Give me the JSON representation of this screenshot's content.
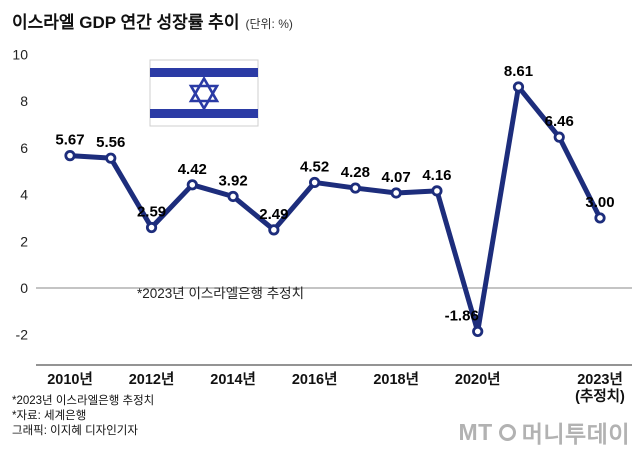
{
  "header": {
    "title": "이스라엘 GDP 연간 성장률 추이",
    "unit": "(단위: %)"
  },
  "chart_data": {
    "type": "line",
    "title": "이스라엘 GDP 연간 성장률 추이",
    "unit": "%",
    "years": [
      2010,
      2011,
      2012,
      2013,
      2014,
      2015,
      2016,
      2017,
      2018,
      2019,
      2020,
      2021,
      2022,
      2023
    ],
    "values": [
      5.67,
      5.56,
      2.59,
      4.42,
      3.92,
      2.49,
      4.52,
      4.28,
      4.07,
      4.16,
      -1.86,
      8.61,
      6.46,
      3.0
    ],
    "point_labels": [
      "5.67",
      "5.56",
      "2.59",
      "4.42",
      "3.92",
      "2.49",
      "4.52",
      "4.28",
      "4.07",
      "4.16",
      "-1.86",
      "8.61",
      "6.46",
      "3.00"
    ],
    "label_position": [
      "above",
      "above",
      "above",
      "above",
      "above",
      "above",
      "above",
      "above",
      "above",
      "above",
      "above-left",
      "above",
      "above",
      "above"
    ],
    "yticks": [
      -2,
      0,
      2,
      4,
      6,
      8,
      10
    ],
    "ylim": [
      -2,
      10
    ],
    "x_tick_labels": [
      {
        "index": 0,
        "label": "2010년"
      },
      {
        "index": 2,
        "label": "2012년"
      },
      {
        "index": 4,
        "label": "2014년"
      },
      {
        "index": 6,
        "label": "2016년"
      },
      {
        "index": 8,
        "label": "2018년"
      },
      {
        "index": 10,
        "label": "2020년"
      },
      {
        "index": 13,
        "label": "2023년",
        "label2": "(추정치)"
      }
    ],
    "annotation": "*2023년 이스라엘은행 추정치",
    "line_color": "#1d2d7c",
    "flag_blue": "#2b3ba5",
    "grid": "zero-line only",
    "legend": "none"
  },
  "footer": {
    "note1": "*2023년 이스라엘은행 추정치",
    "note2": "*자료: 세계은행",
    "note3": "그래픽: 이지혜 디자인기자"
  },
  "watermark": {
    "mt": "MT",
    "name": "머니투데이"
  }
}
